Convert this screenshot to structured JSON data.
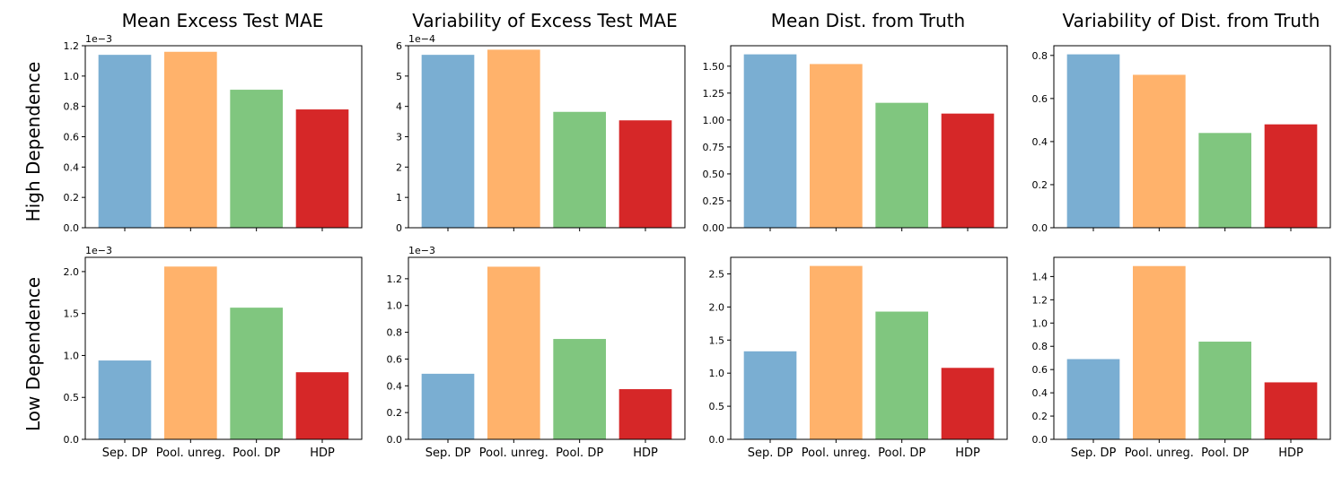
{
  "column_titles": [
    "Mean Excess Test MAE",
    "Variability of Excess Test MAE",
    "Mean Dist. from Truth",
    "Variability of Dist. from Truth"
  ],
  "row_labels": [
    "High Dependence",
    "Low Dependence"
  ],
  "chart_data": [
    {
      "type": "bar",
      "row": "High Dependence",
      "title": "Mean Excess Test MAE",
      "categories": [
        "Sep. DP",
        "Pool. unreg.",
        "Pool. DP",
        "HDP"
      ],
      "values": [
        0.00114,
        0.00116,
        0.00091,
        0.00078
      ],
      "ylim": [
        0,
        0.0012
      ],
      "ticks": [
        0,
        0.0002,
        0.0004,
        0.0006,
        0.0008,
        0.001,
        0.0012
      ],
      "tick_labels": [
        "0.0",
        "0.2",
        "0.4",
        "0.6",
        "0.8",
        "1.0",
        "1.2"
      ],
      "offset_label": "1e−3",
      "colors": [
        "#7aaed2",
        "#ffb26b",
        "#80c67f",
        "#d62728"
      ],
      "show_xticklabels": false
    },
    {
      "type": "bar",
      "row": "High Dependence",
      "title": "Variability of Excess Test MAE",
      "categories": [
        "Sep. DP",
        "Pool. unreg.",
        "Pool. DP",
        "HDP"
      ],
      "values": [
        0.00057,
        0.000587,
        0.000382,
        0.000354
      ],
      "ylim": [
        0,
        0.0006
      ],
      "ticks": [
        0,
        0.0001,
        0.0002,
        0.0003,
        0.0004,
        0.0005,
        0.0006
      ],
      "tick_labels": [
        "0",
        "1",
        "2",
        "3",
        "4",
        "5",
        "6"
      ],
      "offset_label": "1e−4",
      "colors": [
        "#7aaed2",
        "#ffb26b",
        "#80c67f",
        "#d62728"
      ],
      "show_xticklabels": false
    },
    {
      "type": "bar",
      "row": "High Dependence",
      "title": "Mean Dist. from Truth",
      "categories": [
        "Sep. DP",
        "Pool. unreg.",
        "Pool. DP",
        "HDP"
      ],
      "values": [
        1.61,
        1.52,
        1.16,
        1.06
      ],
      "ylim": [
        0,
        1.69
      ],
      "ticks": [
        0,
        0.25,
        0.5,
        0.75,
        1.0,
        1.25,
        1.5
      ],
      "tick_labels": [
        "0.00",
        "0.25",
        "0.50",
        "0.75",
        "1.00",
        "1.25",
        "1.50"
      ],
      "offset_label": "",
      "colors": [
        "#7aaed2",
        "#ffb26b",
        "#80c67f",
        "#d62728"
      ],
      "show_xticklabels": false
    },
    {
      "type": "bar",
      "row": "High Dependence",
      "title": "Variability of Dist. from Truth",
      "categories": [
        "Sep. DP",
        "Pool. unreg.",
        "Pool. DP",
        "HDP"
      ],
      "values": [
        0.805,
        0.71,
        0.44,
        0.48
      ],
      "ylim": [
        0,
        0.845
      ],
      "ticks": [
        0,
        0.2,
        0.4,
        0.6,
        0.8
      ],
      "tick_labels": [
        "0.0",
        "0.2",
        "0.4",
        "0.6",
        "0.8"
      ],
      "offset_label": "",
      "colors": [
        "#7aaed2",
        "#ffb26b",
        "#80c67f",
        "#d62728"
      ],
      "show_xticklabels": false
    },
    {
      "type": "bar",
      "row": "Low Dependence",
      "title": "Mean Excess Test MAE",
      "categories": [
        "Sep. DP",
        "Pool. unreg.",
        "Pool. DP",
        "HDP"
      ],
      "values": [
        0.00094,
        0.00206,
        0.00157,
        0.0008
      ],
      "ylim": [
        0,
        0.00217
      ],
      "ticks": [
        0,
        0.0005,
        0.001,
        0.0015,
        0.002
      ],
      "tick_labels": [
        "0.0",
        "0.5",
        "1.0",
        "1.5",
        "2.0"
      ],
      "offset_label": "1e−3",
      "colors": [
        "#7aaed2",
        "#ffb26b",
        "#80c67f",
        "#d62728"
      ],
      "show_xticklabels": true
    },
    {
      "type": "bar",
      "row": "Low Dependence",
      "title": "Variability of Excess Test MAE",
      "categories": [
        "Sep. DP",
        "Pool. unreg.",
        "Pool. DP",
        "HDP"
      ],
      "values": [
        0.00049,
        0.00129,
        0.00075,
        0.000375
      ],
      "ylim": [
        0,
        0.00136
      ],
      "ticks": [
        0,
        0.0002,
        0.0004,
        0.0006,
        0.0008,
        0.001,
        0.0012
      ],
      "tick_labels": [
        "0.0",
        "0.2",
        "0.4",
        "0.6",
        "0.8",
        "1.0",
        "1.2"
      ],
      "offset_label": "1e−3",
      "colors": [
        "#7aaed2",
        "#ffb26b",
        "#80c67f",
        "#d62728"
      ],
      "show_xticklabels": true
    },
    {
      "type": "bar",
      "row": "Low Dependence",
      "title": "Mean Dist. from Truth",
      "categories": [
        "Sep. DP",
        "Pool. unreg.",
        "Pool. DP",
        "HDP"
      ],
      "values": [
        1.33,
        2.62,
        1.93,
        1.08
      ],
      "ylim": [
        0,
        2.75
      ],
      "ticks": [
        0,
        0.5,
        1.0,
        1.5,
        2.0,
        2.5
      ],
      "tick_labels": [
        "0.0",
        "0.5",
        "1.0",
        "1.5",
        "2.0",
        "2.5"
      ],
      "offset_label": "",
      "colors": [
        "#7aaed2",
        "#ffb26b",
        "#80c67f",
        "#d62728"
      ],
      "show_xticklabels": true
    },
    {
      "type": "bar",
      "row": "Low Dependence",
      "title": "Variability of Dist. from Truth",
      "categories": [
        "Sep. DP",
        "Pool. unreg.",
        "Pool. DP",
        "HDP"
      ],
      "values": [
        0.69,
        1.49,
        0.84,
        0.49
      ],
      "ylim": [
        0,
        1.565
      ],
      "ticks": [
        0,
        0.2,
        0.4,
        0.6,
        0.8,
        1.0,
        1.2,
        1.4
      ],
      "tick_labels": [
        "0.0",
        "0.2",
        "0.4",
        "0.6",
        "0.8",
        "1.0",
        "1.2",
        "1.4"
      ],
      "offset_label": "",
      "colors": [
        "#7aaed2",
        "#ffb26b",
        "#80c67f",
        "#d62728"
      ],
      "show_xticklabels": true
    }
  ]
}
